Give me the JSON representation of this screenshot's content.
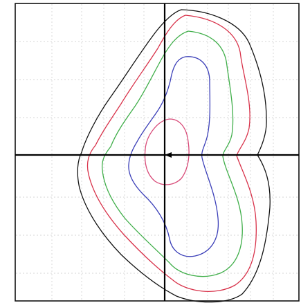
{
  "figure": {
    "kind": "nested contour isodose plot",
    "grid": true,
    "contours": [
      {
        "id": "outer",
        "color": "#111111"
      },
      {
        "id": "second",
        "color": "#d8324a"
      },
      {
        "id": "third",
        "color": "#3fae49"
      },
      {
        "id": "fourth",
        "color": "#3b3fb8"
      },
      {
        "id": "inner",
        "color": "#d84a78"
      }
    ]
  }
}
